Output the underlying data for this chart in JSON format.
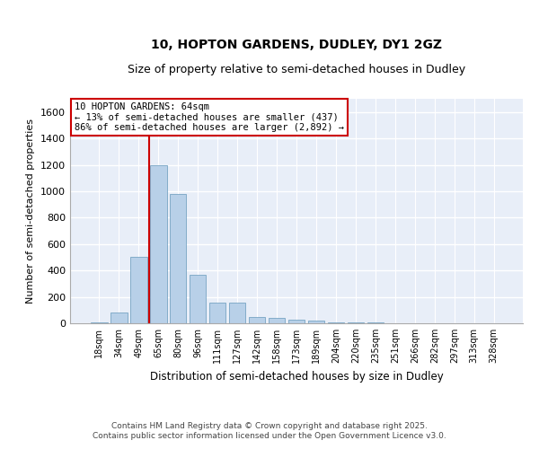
{
  "title_line1": "10, HOPTON GARDENS, DUDLEY, DY1 2GZ",
  "title_line2": "Size of property relative to semi-detached houses in Dudley",
  "xlabel": "Distribution of semi-detached houses by size in Dudley",
  "ylabel": "Number of semi-detached properties",
  "categories": [
    "18sqm",
    "34sqm",
    "49sqm",
    "65sqm",
    "80sqm",
    "96sqm",
    "111sqm",
    "127sqm",
    "142sqm",
    "158sqm",
    "173sqm",
    "189sqm",
    "204sqm",
    "220sqm",
    "235sqm",
    "251sqm",
    "266sqm",
    "282sqm",
    "297sqm",
    "313sqm",
    "328sqm"
  ],
  "values": [
    10,
    80,
    500,
    1200,
    980,
    370,
    155,
    155,
    50,
    40,
    30,
    20,
    10,
    8,
    5,
    2,
    1,
    1,
    0,
    0,
    0
  ],
  "bar_color": "#b8d0e8",
  "bar_edge_color": "#6699bb",
  "ylim": [
    0,
    1700
  ],
  "yticks": [
    0,
    200,
    400,
    600,
    800,
    1000,
    1200,
    1400,
    1600
  ],
  "property_label": "10 HOPTON GARDENS: 64sqm",
  "annotation_line1": "← 13% of semi-detached houses are smaller (437)",
  "annotation_line2": "86% of semi-detached houses are larger (2,892) →",
  "vline_color": "#cc0000",
  "annotation_box_color": "#cc0000",
  "footer_line1": "Contains HM Land Registry data © Crown copyright and database right 2025.",
  "footer_line2": "Contains public sector information licensed under the Open Government Licence v3.0.",
  "background_color": "#e8eef8",
  "grid_color": "#ffffff",
  "fig_bg_color": "#ffffff",
  "title_fontsize": 10,
  "subtitle_fontsize": 9,
  "bar_width": 0.85,
  "vline_x_index": 2.55
}
